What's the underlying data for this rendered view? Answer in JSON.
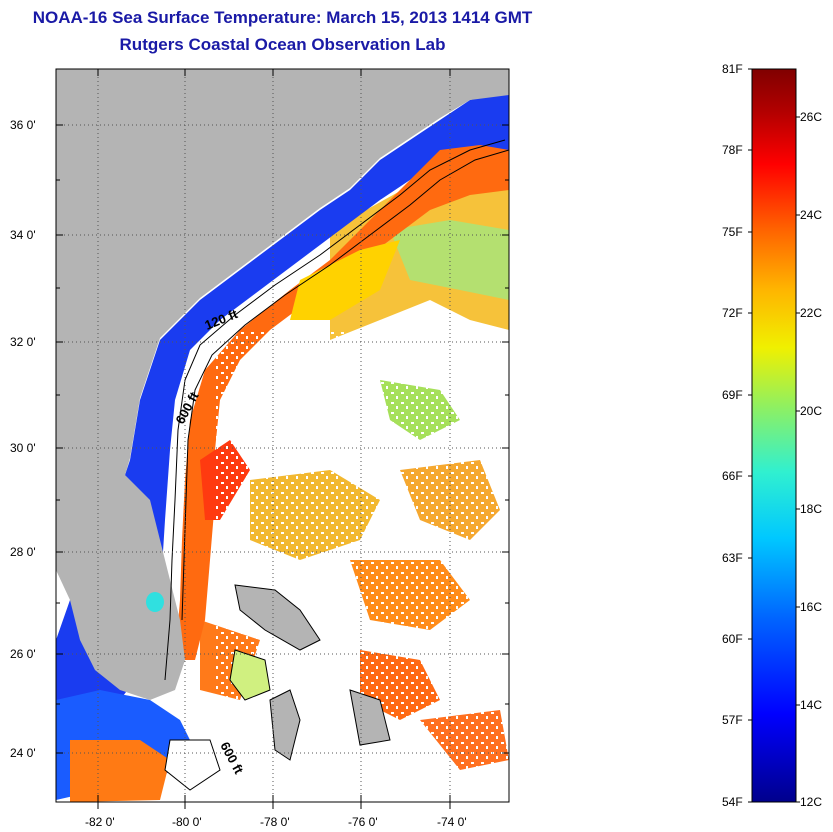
{
  "header": {
    "title": "NOAA-16 Sea Surface Temperature:  March 15, 2013 1414 GMT",
    "subtitle": "Rutgers Coastal Ocean Observation Lab"
  },
  "map": {
    "lat_ticks": [
      "36 0'",
      "34 0'",
      "32 0'",
      "30 0'",
      "28 0'",
      "26 0'",
      "24 0'"
    ],
    "lon_ticks": [
      "-82 0'",
      "-80 0'",
      "-78 0'",
      "-76 0'",
      "-74 0'"
    ],
    "contour_labels": [
      "120 ft",
      "600 ft",
      "600 ft"
    ],
    "colors": {
      "land": "#b4b4b4",
      "ocean_no_data": "#ffffff"
    }
  },
  "colorbar": {
    "fahrenheit_labels": [
      "81F",
      "78F",
      "75F",
      "72F",
      "69F",
      "66F",
      "63F",
      "60F",
      "57F",
      "54F"
    ],
    "celsius_labels": [
      "26C",
      "24C",
      "22C",
      "20C",
      "18C",
      "16C",
      "14C",
      "12C"
    ],
    "colors": [
      "#00008c",
      "#0000ff",
      "#0064ff",
      "#00c8ff",
      "#30f0d0",
      "#90f060",
      "#f0f000",
      "#ffb400",
      "#ff6400",
      "#ff0000",
      "#b40000",
      "#800000"
    ]
  }
}
